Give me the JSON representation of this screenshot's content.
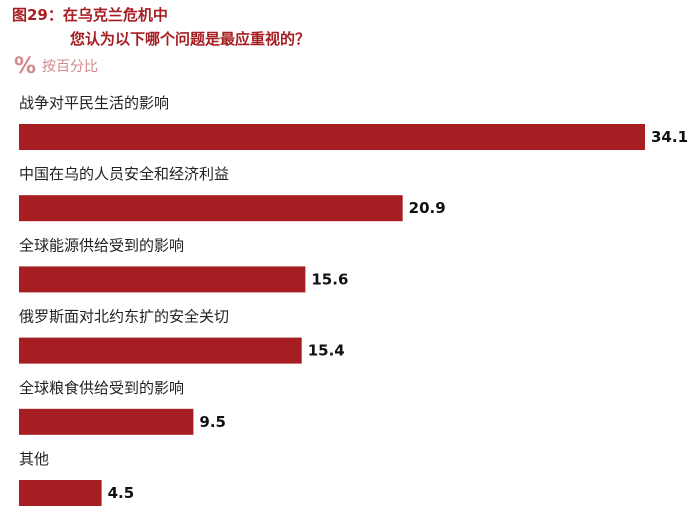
{
  "title": {
    "line1": "图29：在乌克兰危机中",
    "line2": "您认为以下哪个问题是最应重视的？"
  },
  "unit": {
    "icon": "percent-icon",
    "label": "按百分比"
  },
  "colors": {
    "bar": "#a61e22",
    "title": "#a61e22",
    "unit": "#d28a8c"
  },
  "chart_data": {
    "type": "bar",
    "orientation": "horizontal",
    "categories": [
      "战争对平民生活的影响",
      "中国在乌的人员安全和经济利益",
      "全球能源供给受到的影响",
      "俄罗斯面对北约东扩的安全关切",
      "全球粮食供给受到的影响",
      "其他"
    ],
    "values": [
      34.1,
      20.9,
      15.6,
      15.4,
      9.5,
      4.5
    ],
    "title": "图29：在乌克兰危机中 您认为以下哪个问题是最应重视的？",
    "unit": "按百分比",
    "grid": false,
    "legend": "none"
  }
}
